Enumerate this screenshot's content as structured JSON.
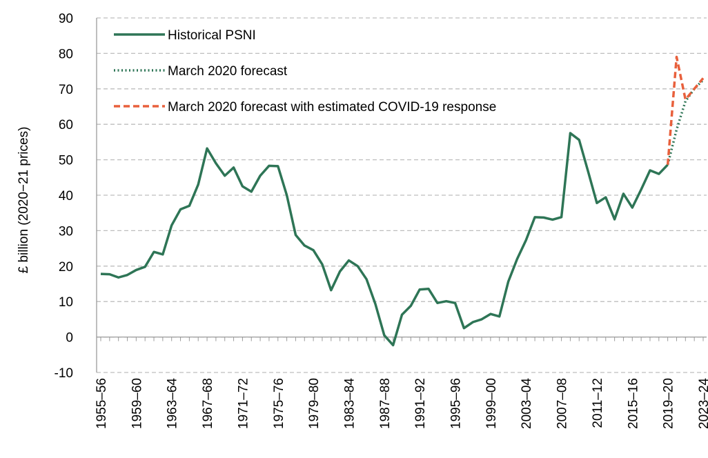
{
  "chart_data": {
    "type": "line",
    "y_label": "£ billion (2020−21 prices)",
    "categories": [
      "1955–56",
      null,
      null,
      null,
      "1959–60",
      null,
      null,
      null,
      "1963–64",
      null,
      null,
      null,
      "1967–68",
      null,
      null,
      null,
      "1971–72",
      null,
      null,
      null,
      "1975–76",
      null,
      null,
      null,
      "1979–80",
      null,
      null,
      null,
      "1983–84",
      null,
      null,
      null,
      "1987–88",
      null,
      null,
      null,
      "1991–92",
      null,
      null,
      null,
      "1995–96",
      null,
      null,
      null,
      "1999–00",
      null,
      null,
      null,
      "2003–04",
      null,
      null,
      null,
      "2007–08",
      null,
      null,
      null,
      "2011–12",
      null,
      null,
      null,
      "2015–16",
      null,
      null,
      null,
      "2019–20",
      null,
      null,
      null,
      "2023–24"
    ],
    "series": [
      {
        "name": "Historical PSNI",
        "color": "#2e7556",
        "style": "solid",
        "values": [
          17.8,
          17.7,
          16.8,
          17.5,
          18.9,
          19.8,
          24.0,
          23.3,
          31.5,
          36.0,
          37.0,
          43.0,
          53.2,
          49.0,
          45.5,
          47.8,
          42.5,
          41.0,
          45.5,
          48.3,
          48.2,
          40.0,
          28.8,
          25.8,
          24.5,
          20.5,
          13.2,
          18.5,
          21.6,
          20.0,
          16.3,
          9.3,
          0.5,
          -2.3,
          6.3,
          8.8,
          13.4,
          13.6,
          9.6,
          10.1,
          9.6,
          2.5,
          4.2,
          5.0,
          6.5,
          5.8,
          15.6,
          22.0,
          27.3,
          33.8,
          33.7,
          33.1,
          33.8,
          57.5,
          55.6,
          46.8,
          37.8,
          39.4,
          33.2,
          40.4,
          36.5,
          41.6,
          47.0,
          46.0,
          48.6,
          null,
          null,
          null,
          null
        ]
      },
      {
        "name": "March 2020 forecast",
        "color": "#2e7556",
        "style": "dotted",
        "values": [
          null,
          null,
          null,
          null,
          null,
          null,
          null,
          null,
          null,
          null,
          null,
          null,
          null,
          null,
          null,
          null,
          null,
          null,
          null,
          null,
          null,
          null,
          null,
          null,
          null,
          null,
          null,
          null,
          null,
          null,
          null,
          null,
          null,
          null,
          null,
          null,
          null,
          null,
          null,
          null,
          null,
          null,
          null,
          null,
          null,
          null,
          null,
          null,
          null,
          null,
          null,
          null,
          null,
          null,
          null,
          null,
          null,
          null,
          null,
          null,
          null,
          null,
          null,
          null,
          48.6,
          58.5,
          66.5,
          70.0,
          72.5
        ]
      },
      {
        "name": "March 2020 forecast with estimated COVID-19 response",
        "color": "#e8603c",
        "style": "dashed",
        "values": [
          null,
          null,
          null,
          null,
          null,
          null,
          null,
          null,
          null,
          null,
          null,
          null,
          null,
          null,
          null,
          null,
          null,
          null,
          null,
          null,
          null,
          null,
          null,
          null,
          null,
          null,
          null,
          null,
          null,
          null,
          null,
          null,
          null,
          null,
          null,
          null,
          null,
          null,
          null,
          null,
          null,
          null,
          null,
          null,
          null,
          null,
          null,
          null,
          null,
          null,
          null,
          null,
          null,
          null,
          null,
          null,
          null,
          null,
          null,
          null,
          null,
          null,
          null,
          null,
          48.6,
          79.0,
          67.0,
          70.0,
          73.0
        ]
      }
    ],
    "ylim": [
      -10,
      90
    ],
    "yticks": [
      -10,
      0,
      10,
      20,
      30,
      40,
      50,
      60,
      70,
      80,
      90
    ],
    "grid": true,
    "legend": "upper-left"
  }
}
